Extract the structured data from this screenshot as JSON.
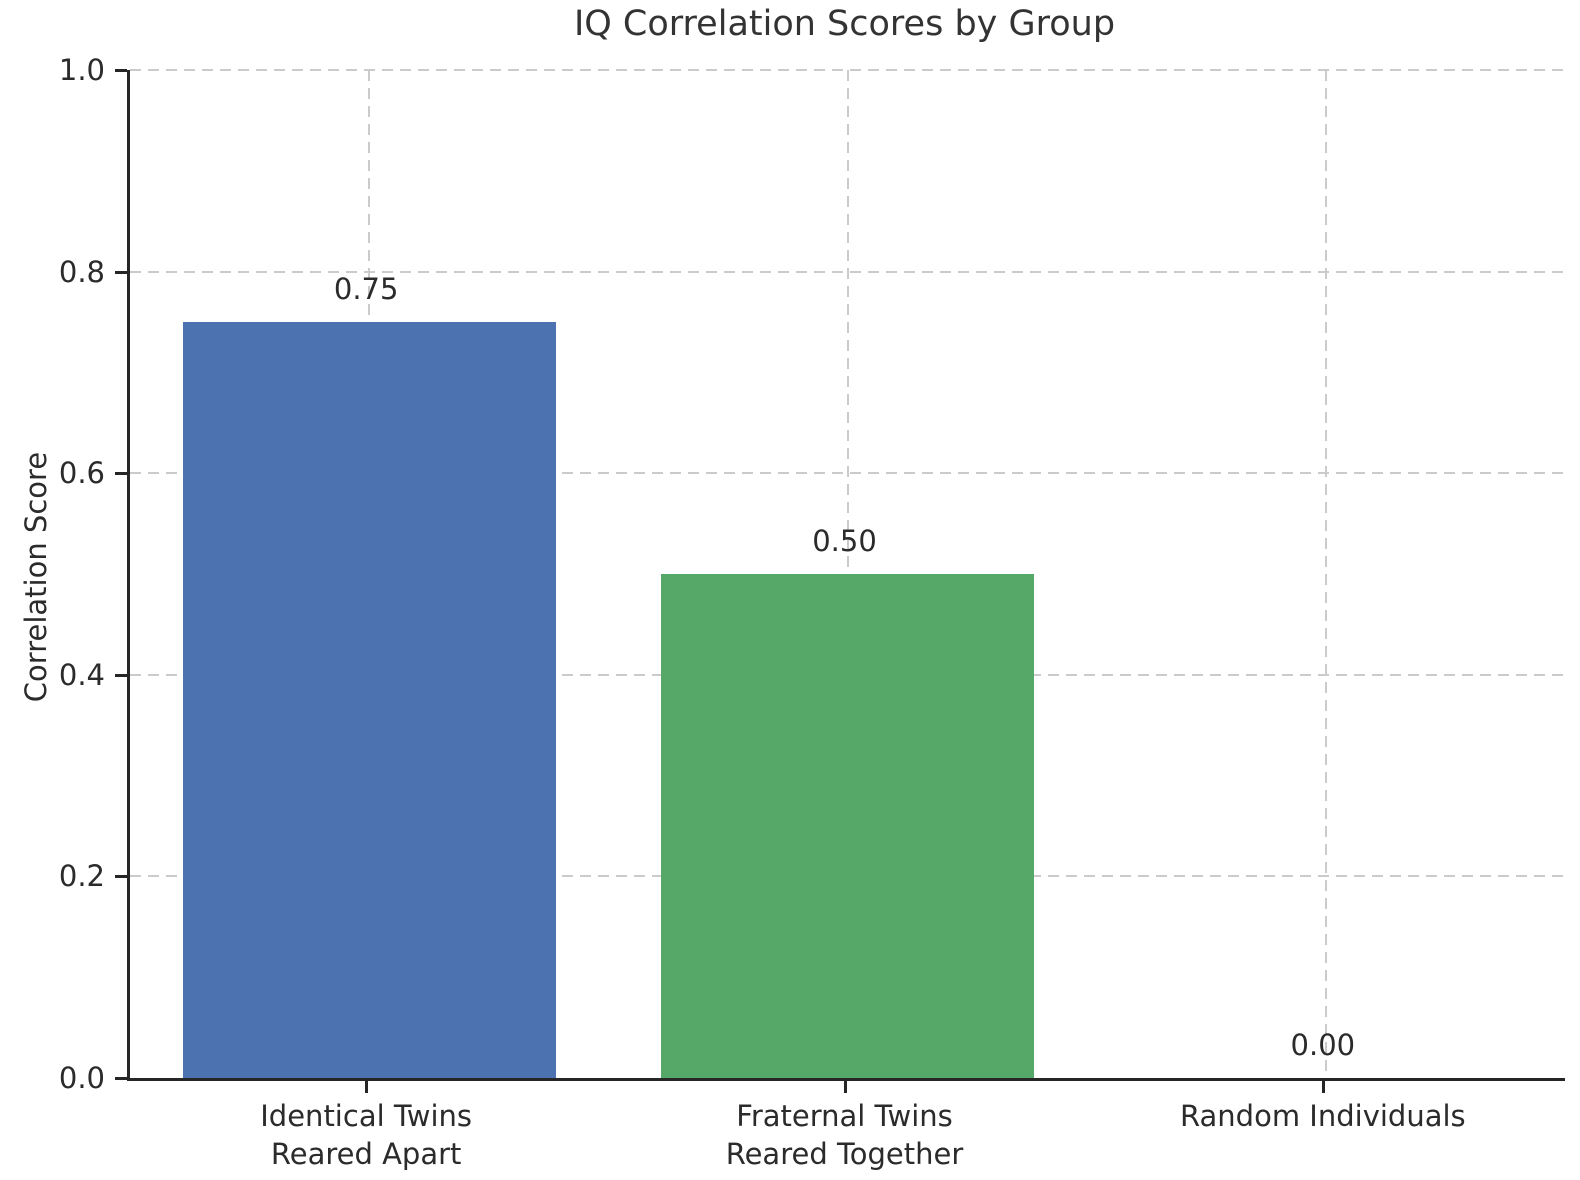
{
  "chart_data": {
    "type": "bar",
    "title": "IQ Correlation Scores by Group",
    "xlabel": "",
    "ylabel": "Correlation Score",
    "categories": [
      "Identical Twins\nReared Apart",
      "Fraternal Twins\nReared Together",
      "Random Individuals"
    ],
    "values": [
      0.75,
      0.5,
      0.0
    ],
    "bar_value_labels": [
      "0.75",
      "0.50",
      "0.00"
    ],
    "bar_colors": [
      "#4c72b0",
      "#55a868",
      null
    ],
    "ylim": [
      0.0,
      1.0
    ],
    "yticks": [
      0.0,
      0.2,
      0.4,
      0.6,
      0.8,
      1.0
    ],
    "ytick_labels": [
      "0.0",
      "0.2",
      "0.4",
      "0.6",
      "0.8",
      "1.0"
    ],
    "grid": "on",
    "grid_linestyle": "dashed",
    "legend_position": "none",
    "bar_width_fraction": 0.78
  },
  "colors": {
    "background": "#ffffff",
    "bar_blue": "#4c72b0",
    "bar_green": "#55a868",
    "gridline": "#cbcbcb",
    "spine": "#262626",
    "text": "#2b2b2b",
    "title_text": "#333333"
  }
}
